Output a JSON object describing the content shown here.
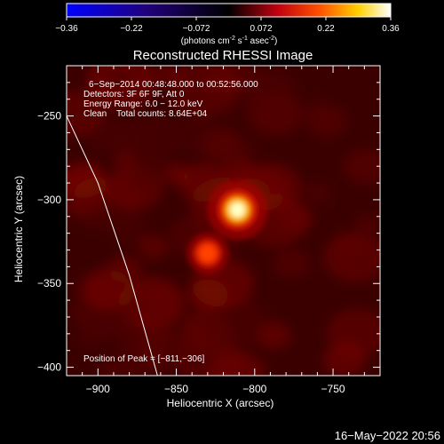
{
  "colorbar": {
    "ticks": [
      "-0.36",
      "-0.22",
      "-0.072",
      "0.072",
      "0.22",
      "0.36"
    ],
    "unit_main": "(photons cm",
    "unit_sup1": "-2",
    "unit_mid": " s",
    "unit_sup2": "-1",
    "unit_mid2": " asec",
    "unit_sup3": "-2",
    "unit_end": ")",
    "range": [
      -0.36,
      0.36
    ],
    "colormap": [
      "#0000ff",
      "#000000",
      "#ff0000",
      "#ffff00",
      "#ffffff"
    ]
  },
  "chart_data": {
    "type": "heatmap",
    "title": "Reconstructed RHESSI Image",
    "xlabel": "Heliocentric X (arcsec)",
    "ylabel": "Heliocentric Y (arcsec)",
    "xlim": [
      -920,
      -720
    ],
    "ylim": [
      -405,
      -220
    ],
    "x_ticks": [
      -900,
      -850,
      -800,
      -750
    ],
    "y_ticks": [
      -250,
      -300,
      -350,
      -400
    ],
    "x_tick_labels": [
      "−900",
      "−850",
      "−800",
      "−750"
    ],
    "y_tick_labels": [
      "−250",
      "−300",
      "−350",
      "−400"
    ],
    "sources": [
      {
        "x": -811,
        "y": -306,
        "peak": 0.36
      },
      {
        "x": -830,
        "y": -332,
        "peak": 0.2
      }
    ],
    "limb_points": [
      [
        -920,
        -250
      ],
      [
        -900,
        -290
      ],
      [
        -880,
        -345
      ],
      [
        -862,
        -405
      ]
    ],
    "info_lines": [
      "6−Sep−2014 00:48:48.000 to 00:52:56.000",
      "Detectors: 3F 6F 9F, Att 0",
      "Energy Range: 6.0 − 12.0 keV",
      "Clean    Total counts: 8.64E+04"
    ],
    "peak_label": "Position of Peak = [−811,−306]"
  },
  "footer": {
    "timestamp": "16−May−2022 20:56"
  }
}
